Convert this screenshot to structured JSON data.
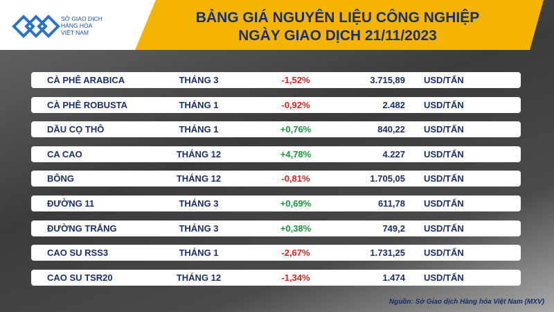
{
  "logo": {
    "lines": [
      "SỞ GIAO DỊCH",
      "HÀNG HÓA",
      "VIỆT NAM"
    ]
  },
  "header": {
    "title": "BẢNG GIÁ NGUYÊN LIỆU CÔNG NGHIỆP",
    "subtitle": "NGÀY GIAO DỊCH 21/11/2023"
  },
  "table": {
    "rows": [
      [
        "CÀ PHÊ ARABICA",
        "THÁNG 3",
        "-1,52%",
        "3.715,89",
        "USD/TẤN"
      ],
      [
        "CÀ PHÊ ROBUSTA",
        "THÁNG 1",
        "-0,92%",
        "2.482",
        "USD/TẤN"
      ],
      [
        "DẦU CỌ THÔ",
        "THÁNG 1",
        "+0,76%",
        "840,22",
        "USD/TẤN"
      ],
      [
        "CA CAO",
        "THÁNG 12",
        "+4,78%",
        "4.227",
        "USD/TẤN"
      ],
      [
        "BÔNG",
        "THÁNG 12",
        "-0,81%",
        "1.705,05",
        "USD/TẤN"
      ],
      [
        "ĐƯỜNG 11",
        "THÁNG 3",
        "+0,69%",
        "611,78",
        "USD/TẤN"
      ],
      [
        "ĐƯỜNG TRẮNG",
        "THÁNG 3",
        "+0,38%",
        "749,2",
        "USD/TẤN"
      ],
      [
        "CAO SU RSS3",
        "THÁNG 1",
        "-2,67%",
        "1.731,25",
        "USD/TẤN"
      ],
      [
        "CAO SU TSR20",
        "THÁNG 12",
        "-1,34%",
        "1.474",
        "USD/TẤN"
      ]
    ]
  },
  "source": "Nguồn: Sở Giao dịch Hàng hóa Việt Nam (MXV)"
}
